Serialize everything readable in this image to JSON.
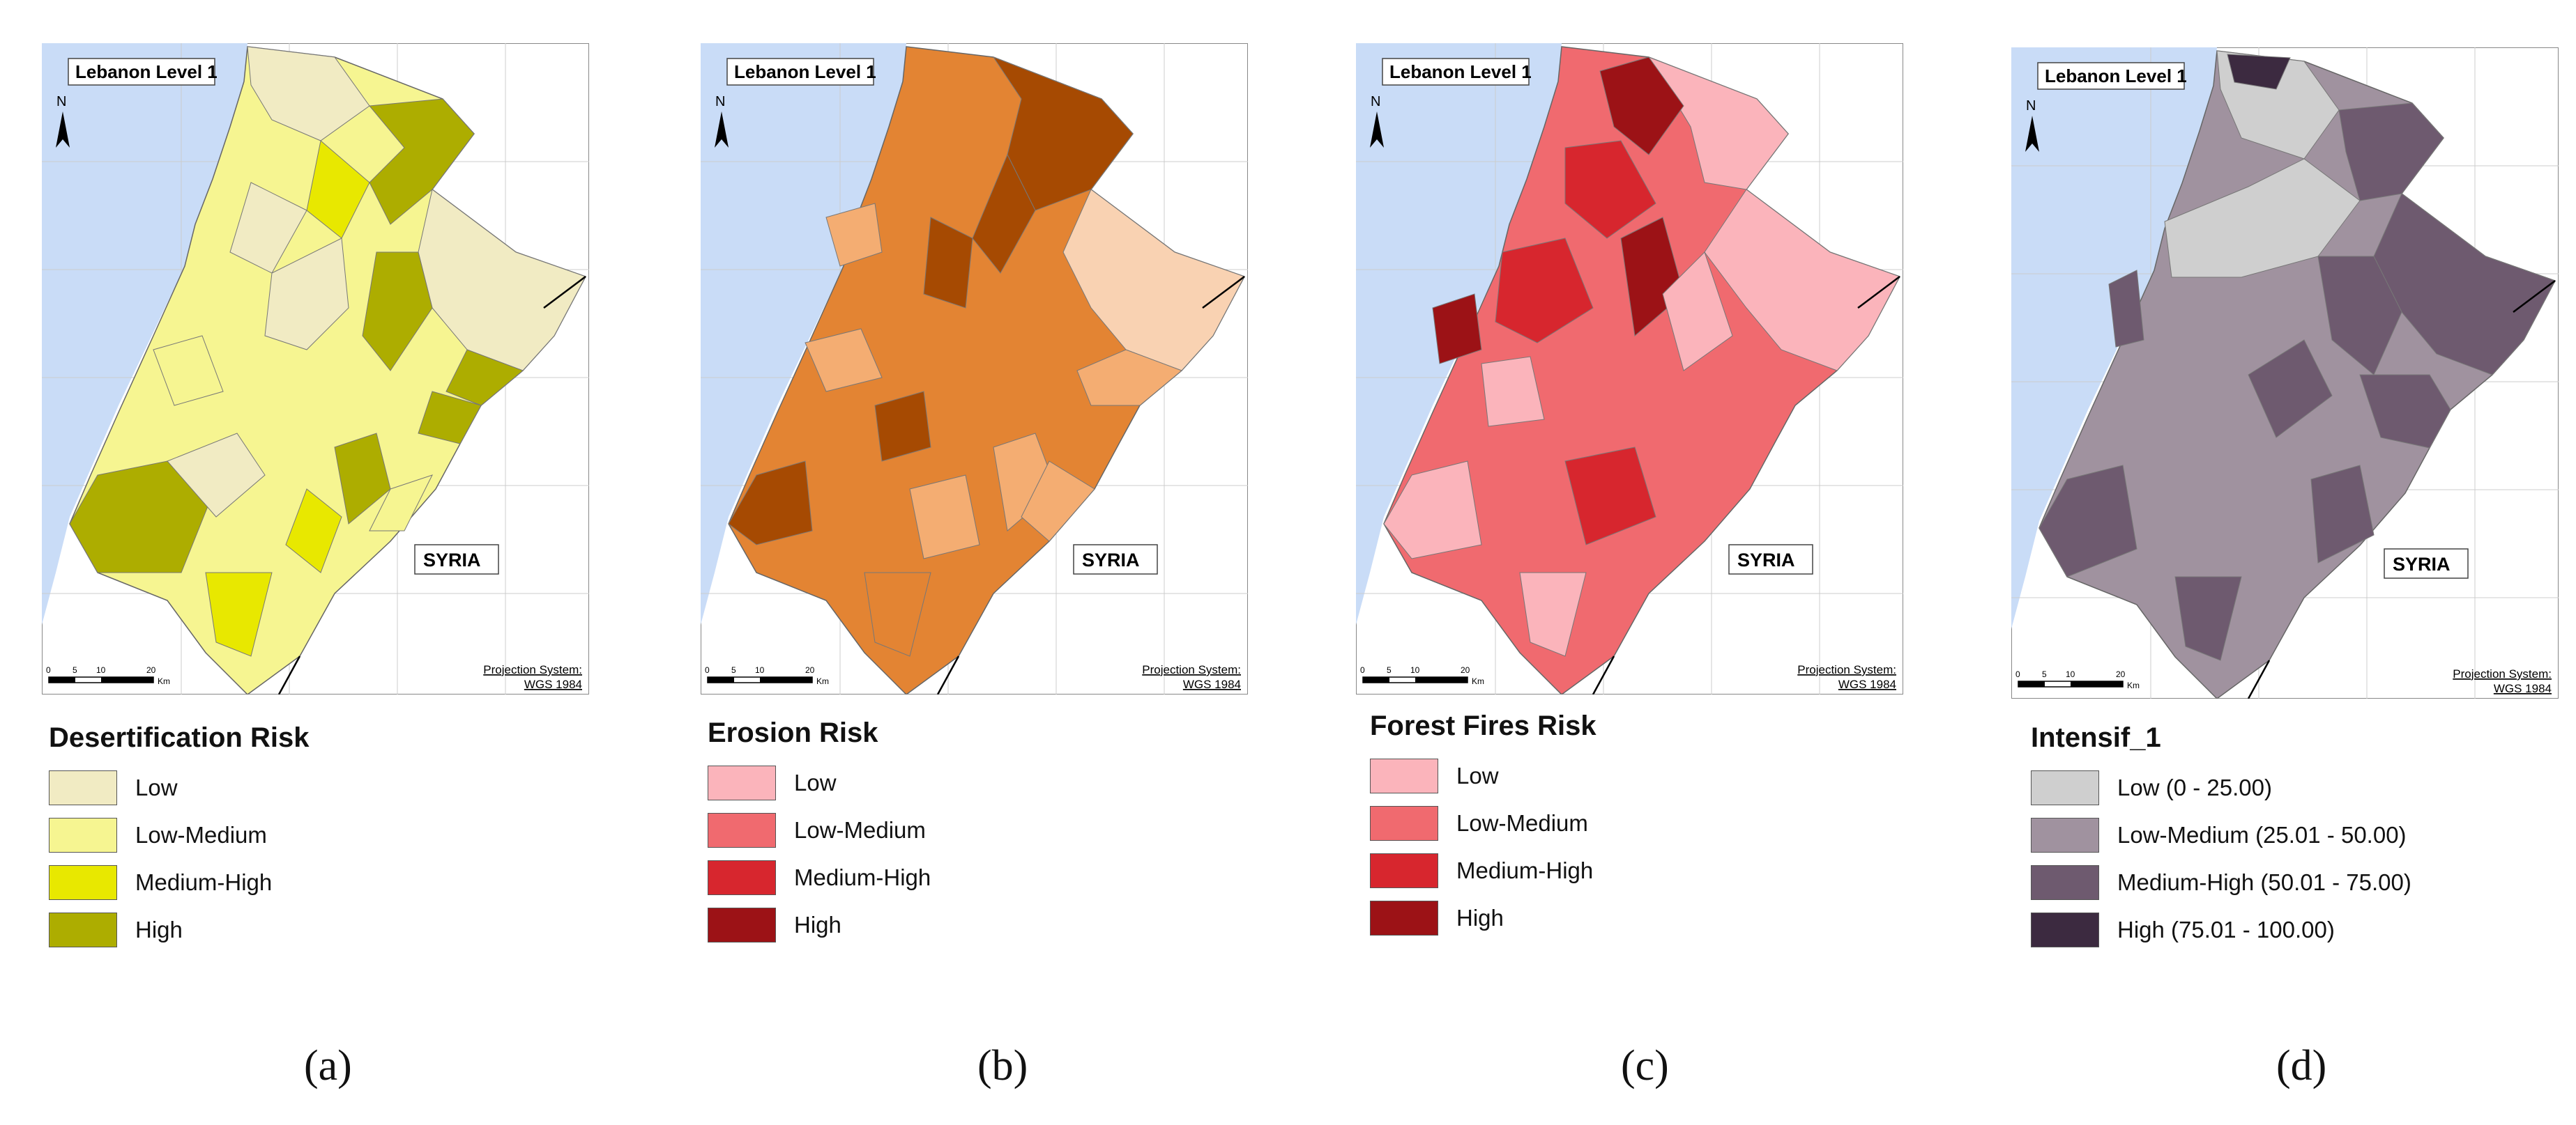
{
  "common": {
    "title_label": "Lebanon Level 1",
    "north_label": "N",
    "neighbor_label": "SYRIA",
    "projection_label": "Projection System:",
    "projection_value": "WGS 1984",
    "scale_ticks": [
      "0",
      "5",
      "10",
      "20"
    ],
    "scale_unit": "Km",
    "sea_color": "#c9dcf7"
  },
  "panels": [
    {
      "caption": "(a)",
      "legend_title": "Desertification Risk",
      "legend": [
        {
          "label": "Low",
          "color": "#f1ebc3"
        },
        {
          "label": "Low-Medium",
          "color": "#f6f591"
        },
        {
          "label": "Medium-High",
          "color": "#e8e800"
        },
        {
          "label": "High",
          "color": "#adad00"
        }
      ]
    },
    {
      "caption": "(b)",
      "legend_title": "Erosion Risk",
      "legend": [
        {
          "label": "Low",
          "color": "#f9d2b2"
        },
        {
          "label": "Low-Medium",
          "color": "#f4ad72"
        },
        {
          "label": "Medium-High",
          "color": "#e38433"
        },
        {
          "label": "High",
          "color": "#a64a02"
        }
      ]
    },
    {
      "caption": "(c)",
      "legend_title": "Forest Fires Risk",
      "legend": [
        {
          "label": "Low",
          "color": "#fbb4bb"
        },
        {
          "label": "Low-Medium",
          "color": "#f06a6f"
        },
        {
          "label": "Medium-High",
          "color": "#d7262e"
        },
        {
          "label": "High",
          "color": "#9c1216"
        }
      ]
    },
    {
      "caption": "(d)",
      "legend_title": "Intensif_1",
      "legend": [
        {
          "label": "Low (0 - 25.00)",
          "color": "#cfcfcf"
        },
        {
          "label": "Low-Medium (25.01 - 50.00)",
          "color": "#a0929f"
        },
        {
          "label": "Medium-High (50.01 - 75.00)",
          "color": "#6e5a6f"
        },
        {
          "label": "High (75.01 - 100.00)",
          "color": "#3c2a40"
        }
      ]
    }
  ]
}
